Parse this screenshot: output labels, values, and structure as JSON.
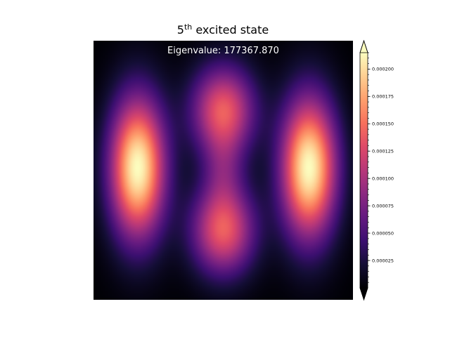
{
  "chart_data": {
    "type": "heatmap",
    "title": {
      "base": "5",
      "superscript": "th",
      "rest": " excited state"
    },
    "annotation": "Eigenvalue: 177367.870",
    "colormap": "magma",
    "colorbar": {
      "vmin": 0.0,
      "vmax": 0.000215,
      "extend": "both",
      "ticks": [
        {
          "value": 2.5e-05,
          "label": "0.000025"
        },
        {
          "value": 5e-05,
          "label": "0.000050"
        },
        {
          "value": 7.5e-05,
          "label": "0.000075"
        },
        {
          "value": 0.0001,
          "label": "0.000100"
        },
        {
          "value": 0.000125,
          "label": "0.000125"
        },
        {
          "value": 0.00015,
          "label": "0.000150"
        },
        {
          "value": 0.000175,
          "label": "0.000175"
        },
        {
          "value": 0.0002,
          "label": "0.000200"
        }
      ]
    },
    "field": {
      "description_mode": "superposition of gaussian lobes on unit square",
      "lobes": [
        {
          "cx": 0.17,
          "cy": 0.49,
          "sx": 0.075,
          "sy": 0.19,
          "amp": 0.000215
        },
        {
          "cx": 0.83,
          "cy": 0.49,
          "sx": 0.075,
          "sy": 0.19,
          "amp": 0.000215
        },
        {
          "cx": 0.5,
          "cy": 0.27,
          "sx": 0.085,
          "sy": 0.12,
          "amp": 0.00014
        },
        {
          "cx": 0.5,
          "cy": 0.73,
          "sx": 0.085,
          "sy": 0.12,
          "amp": 0.00014
        },
        {
          "cx": 0.5,
          "cy": 0.5,
          "sx": 0.055,
          "sy": 0.1,
          "amp": 4.5e-05
        }
      ]
    }
  }
}
